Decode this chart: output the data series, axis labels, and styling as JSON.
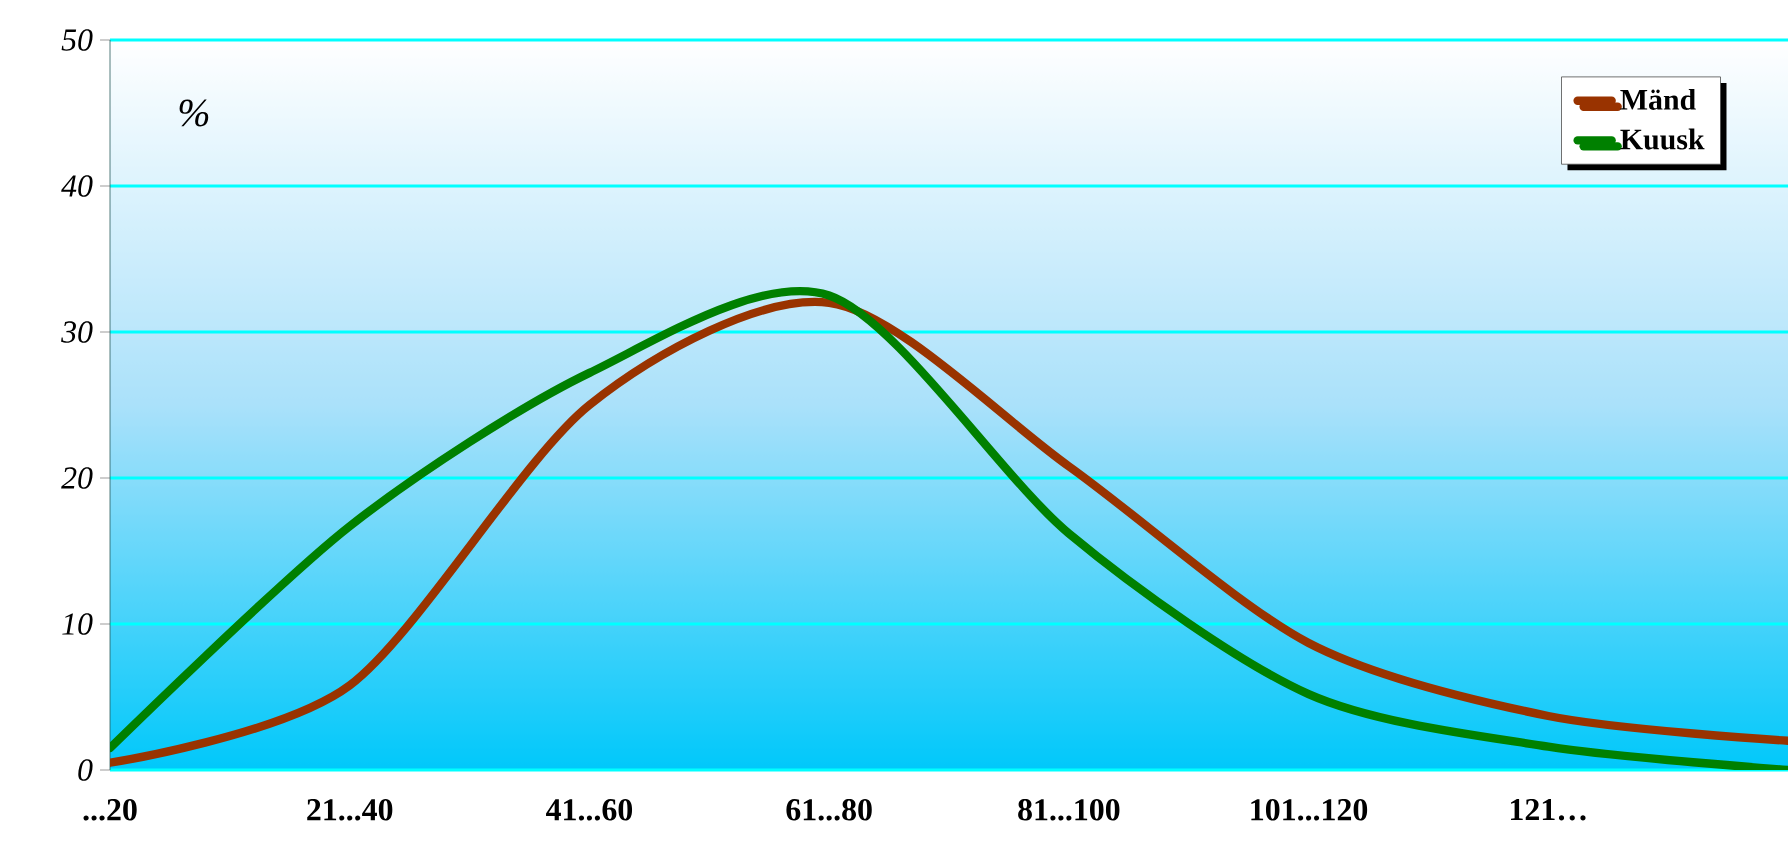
{
  "chart_data": {
    "type": "line",
    "ylabel": "%",
    "categories": [
      "...20",
      "21...40",
      "41...60",
      "61...80",
      "81...100",
      "101...120",
      "121…",
      null
    ],
    "series": [
      {
        "name": "Mänd",
        "color": "#993300",
        "values": [
          0.5,
          5.8,
          25,
          32,
          20.8,
          8.7,
          3.7,
          2.0
        ]
      },
      {
        "name": "Kuusk",
        "color": "#008000",
        "values": [
          1.5,
          16.7,
          27.2,
          32.5,
          16.2,
          5.2,
          1.6,
          0
        ]
      }
    ],
    "ylim": [
      0,
      50
    ],
    "yticks": [
      0,
      10,
      20,
      30,
      40,
      50
    ],
    "grid": "y",
    "legend": "top right",
    "marker": "none",
    "line_style": "solid"
  }
}
